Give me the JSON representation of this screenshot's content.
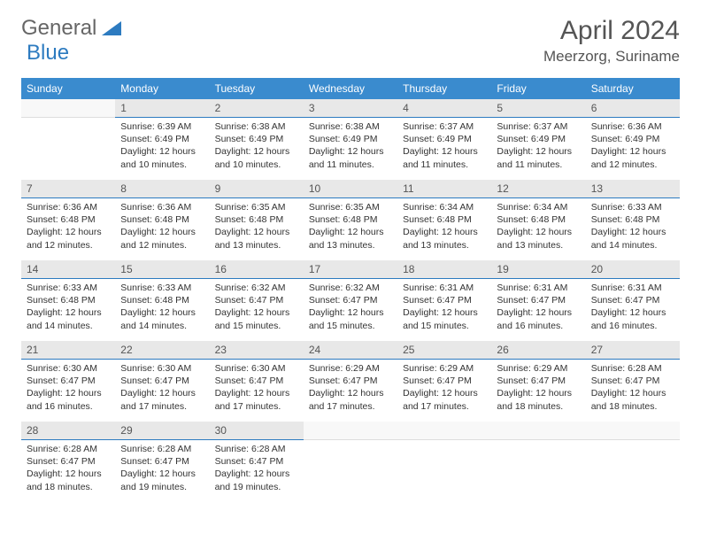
{
  "logo": {
    "general": "General",
    "blue": "Blue"
  },
  "title": "April 2024",
  "location": "Meerzorg, Suriname",
  "weekdays": [
    "Sunday",
    "Monday",
    "Tuesday",
    "Wednesday",
    "Thursday",
    "Friday",
    "Saturday"
  ],
  "colors": {
    "header_bg": "#3a8bce",
    "header_fg": "#ffffff",
    "daynum_bg": "#e8e8e8",
    "daynum_border": "#2d7bc0",
    "text": "#333333"
  },
  "weeks": [
    {
      "nums": [
        "",
        "1",
        "2",
        "3",
        "4",
        "5",
        "6"
      ],
      "cells": [
        null,
        {
          "sr": "Sunrise: 6:39 AM",
          "ss": "Sunset: 6:49 PM",
          "d1": "Daylight: 12 hours",
          "d2": "and 10 minutes."
        },
        {
          "sr": "Sunrise: 6:38 AM",
          "ss": "Sunset: 6:49 PM",
          "d1": "Daylight: 12 hours",
          "d2": "and 10 minutes."
        },
        {
          "sr": "Sunrise: 6:38 AM",
          "ss": "Sunset: 6:49 PM",
          "d1": "Daylight: 12 hours",
          "d2": "and 11 minutes."
        },
        {
          "sr": "Sunrise: 6:37 AM",
          "ss": "Sunset: 6:49 PM",
          "d1": "Daylight: 12 hours",
          "d2": "and 11 minutes."
        },
        {
          "sr": "Sunrise: 6:37 AM",
          "ss": "Sunset: 6:49 PM",
          "d1": "Daylight: 12 hours",
          "d2": "and 11 minutes."
        },
        {
          "sr": "Sunrise: 6:36 AM",
          "ss": "Sunset: 6:49 PM",
          "d1": "Daylight: 12 hours",
          "d2": "and 12 minutes."
        }
      ]
    },
    {
      "nums": [
        "7",
        "8",
        "9",
        "10",
        "11",
        "12",
        "13"
      ],
      "cells": [
        {
          "sr": "Sunrise: 6:36 AM",
          "ss": "Sunset: 6:48 PM",
          "d1": "Daylight: 12 hours",
          "d2": "and 12 minutes."
        },
        {
          "sr": "Sunrise: 6:36 AM",
          "ss": "Sunset: 6:48 PM",
          "d1": "Daylight: 12 hours",
          "d2": "and 12 minutes."
        },
        {
          "sr": "Sunrise: 6:35 AM",
          "ss": "Sunset: 6:48 PM",
          "d1": "Daylight: 12 hours",
          "d2": "and 13 minutes."
        },
        {
          "sr": "Sunrise: 6:35 AM",
          "ss": "Sunset: 6:48 PM",
          "d1": "Daylight: 12 hours",
          "d2": "and 13 minutes."
        },
        {
          "sr": "Sunrise: 6:34 AM",
          "ss": "Sunset: 6:48 PM",
          "d1": "Daylight: 12 hours",
          "d2": "and 13 minutes."
        },
        {
          "sr": "Sunrise: 6:34 AM",
          "ss": "Sunset: 6:48 PM",
          "d1": "Daylight: 12 hours",
          "d2": "and 13 minutes."
        },
        {
          "sr": "Sunrise: 6:33 AM",
          "ss": "Sunset: 6:48 PM",
          "d1": "Daylight: 12 hours",
          "d2": "and 14 minutes."
        }
      ]
    },
    {
      "nums": [
        "14",
        "15",
        "16",
        "17",
        "18",
        "19",
        "20"
      ],
      "cells": [
        {
          "sr": "Sunrise: 6:33 AM",
          "ss": "Sunset: 6:48 PM",
          "d1": "Daylight: 12 hours",
          "d2": "and 14 minutes."
        },
        {
          "sr": "Sunrise: 6:33 AM",
          "ss": "Sunset: 6:48 PM",
          "d1": "Daylight: 12 hours",
          "d2": "and 14 minutes."
        },
        {
          "sr": "Sunrise: 6:32 AM",
          "ss": "Sunset: 6:47 PM",
          "d1": "Daylight: 12 hours",
          "d2": "and 15 minutes."
        },
        {
          "sr": "Sunrise: 6:32 AM",
          "ss": "Sunset: 6:47 PM",
          "d1": "Daylight: 12 hours",
          "d2": "and 15 minutes."
        },
        {
          "sr": "Sunrise: 6:31 AM",
          "ss": "Sunset: 6:47 PM",
          "d1": "Daylight: 12 hours",
          "d2": "and 15 minutes."
        },
        {
          "sr": "Sunrise: 6:31 AM",
          "ss": "Sunset: 6:47 PM",
          "d1": "Daylight: 12 hours",
          "d2": "and 16 minutes."
        },
        {
          "sr": "Sunrise: 6:31 AM",
          "ss": "Sunset: 6:47 PM",
          "d1": "Daylight: 12 hours",
          "d2": "and 16 minutes."
        }
      ]
    },
    {
      "nums": [
        "21",
        "22",
        "23",
        "24",
        "25",
        "26",
        "27"
      ],
      "cells": [
        {
          "sr": "Sunrise: 6:30 AM",
          "ss": "Sunset: 6:47 PM",
          "d1": "Daylight: 12 hours",
          "d2": "and 16 minutes."
        },
        {
          "sr": "Sunrise: 6:30 AM",
          "ss": "Sunset: 6:47 PM",
          "d1": "Daylight: 12 hours",
          "d2": "and 17 minutes."
        },
        {
          "sr": "Sunrise: 6:30 AM",
          "ss": "Sunset: 6:47 PM",
          "d1": "Daylight: 12 hours",
          "d2": "and 17 minutes."
        },
        {
          "sr": "Sunrise: 6:29 AM",
          "ss": "Sunset: 6:47 PM",
          "d1": "Daylight: 12 hours",
          "d2": "and 17 minutes."
        },
        {
          "sr": "Sunrise: 6:29 AM",
          "ss": "Sunset: 6:47 PM",
          "d1": "Daylight: 12 hours",
          "d2": "and 17 minutes."
        },
        {
          "sr": "Sunrise: 6:29 AM",
          "ss": "Sunset: 6:47 PM",
          "d1": "Daylight: 12 hours",
          "d2": "and 18 minutes."
        },
        {
          "sr": "Sunrise: 6:28 AM",
          "ss": "Sunset: 6:47 PM",
          "d1": "Daylight: 12 hours",
          "d2": "and 18 minutes."
        }
      ]
    },
    {
      "nums": [
        "28",
        "29",
        "30",
        "",
        "",
        "",
        ""
      ],
      "cells": [
        {
          "sr": "Sunrise: 6:28 AM",
          "ss": "Sunset: 6:47 PM",
          "d1": "Daylight: 12 hours",
          "d2": "and 18 minutes."
        },
        {
          "sr": "Sunrise: 6:28 AM",
          "ss": "Sunset: 6:47 PM",
          "d1": "Daylight: 12 hours",
          "d2": "and 19 minutes."
        },
        {
          "sr": "Sunrise: 6:28 AM",
          "ss": "Sunset: 6:47 PM",
          "d1": "Daylight: 12 hours",
          "d2": "and 19 minutes."
        },
        null,
        null,
        null,
        null
      ]
    }
  ]
}
